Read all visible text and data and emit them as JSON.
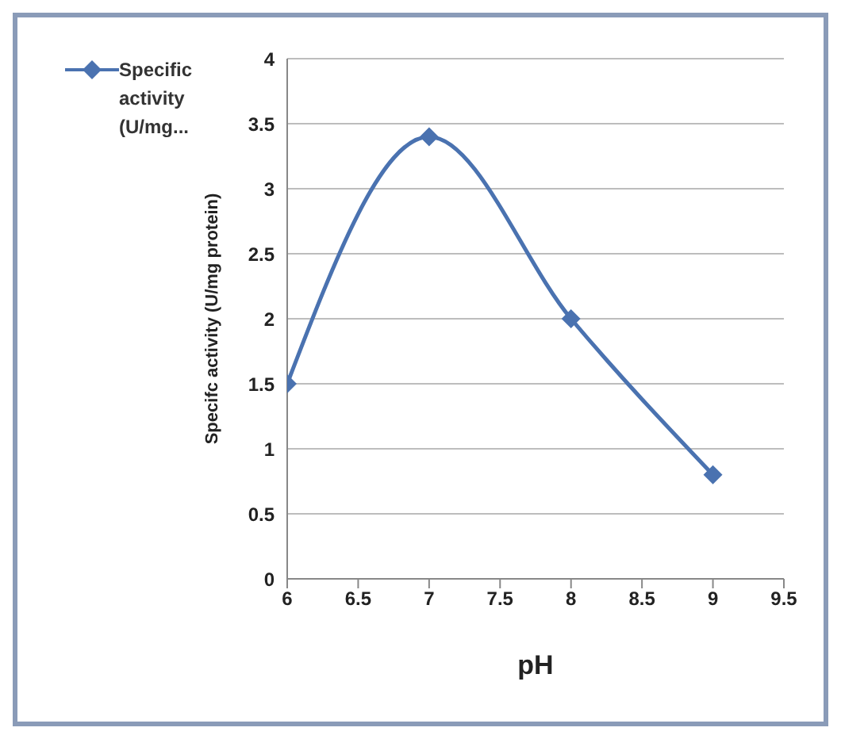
{
  "chart_data": {
    "type": "line",
    "xlabel": "pH",
    "ylabel": "Specifc activity (U/mg protein)",
    "x": [
      6,
      7,
      8,
      9
    ],
    "series": [
      {
        "name": "Specific activity (U/mg...",
        "color": "#4a72b0",
        "values": [
          1.5,
          3.4,
          2.0,
          0.8
        ]
      }
    ],
    "xlim": [
      6,
      9.5
    ],
    "xticks": [
      6,
      6.5,
      7,
      7.5,
      8,
      8.5,
      9,
      9.5
    ],
    "ylim": [
      0,
      4
    ],
    "yticks": [
      0,
      0.5,
      1,
      1.5,
      2,
      2.5,
      3,
      3.5,
      4
    ],
    "grid": "y",
    "legend": "top left",
    "marker": "diamond",
    "line_style": "solid"
  }
}
